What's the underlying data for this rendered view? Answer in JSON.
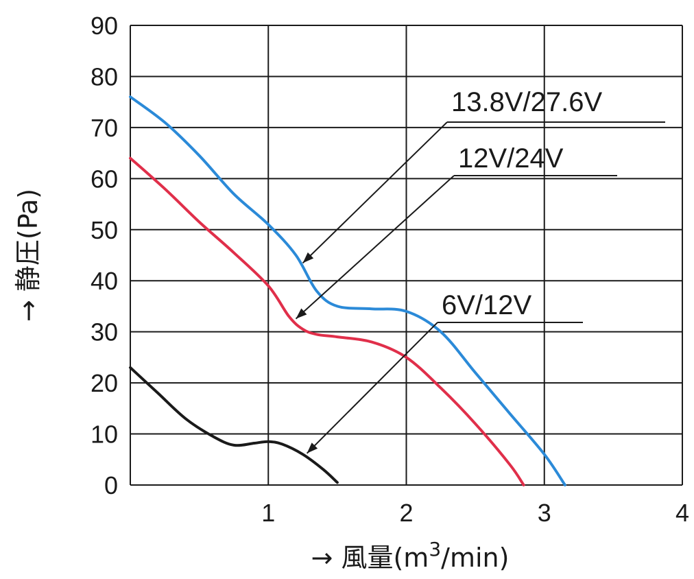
{
  "chart_data": {
    "type": "line",
    "xlabel_prefix": "→ 風量(m",
    "xlabel_sup": "3",
    "xlabel_suffix": "/min)",
    "ylabel": "→ 静圧(Pa)",
    "xlim": [
      0,
      4
    ],
    "ylim": [
      0,
      90
    ],
    "x_ticks": [
      "1",
      "2",
      "3",
      "4"
    ],
    "y_ticks": [
      "0",
      "10",
      "20",
      "30",
      "40",
      "50",
      "60",
      "70",
      "80",
      "90"
    ],
    "grid": true,
    "series": [
      {
        "name": "13.8V/27.6V",
        "color": "#2b8ad8",
        "x": [
          0,
          0.25,
          0.5,
          0.75,
          1.0,
          1.2,
          1.35,
          1.5,
          1.75,
          2.0,
          2.25,
          2.5,
          2.75,
          3.0,
          3.15
        ],
        "y": [
          76,
          71,
          64.5,
          57,
          51,
          45,
          38,
          35,
          34.5,
          34,
          30,
          22,
          14,
          6,
          0
        ]
      },
      {
        "name": "12V/24V",
        "color": "#e02f4a",
        "x": [
          0,
          0.25,
          0.5,
          0.75,
          1.0,
          1.15,
          1.25,
          1.35,
          1.5,
          1.75,
          2.0,
          2.25,
          2.5,
          2.75,
          2.85
        ],
        "y": [
          64,
          58,
          51.5,
          45.5,
          39,
          33,
          30.5,
          29.5,
          29,
          28,
          25,
          19,
          12,
          4,
          0
        ]
      },
      {
        "name": "6V/12V",
        "color": "#1a1a1a",
        "x": [
          0,
          0.2,
          0.4,
          0.6,
          0.75,
          0.9,
          1.0,
          1.1,
          1.25,
          1.4,
          1.5
        ],
        "y": [
          23,
          18,
          13,
          9.5,
          7.8,
          8.2,
          8.5,
          8,
          6,
          3,
          0.5
        ]
      }
    ],
    "annotations": [
      {
        "text": "13.8V/27.6V",
        "series": 0,
        "target_x": 1.25
      },
      {
        "text": "12V/24V",
        "series": 1,
        "target_x": 1.2
      },
      {
        "text": "6V/12V",
        "series": 2,
        "target_x": 1.28
      }
    ]
  }
}
